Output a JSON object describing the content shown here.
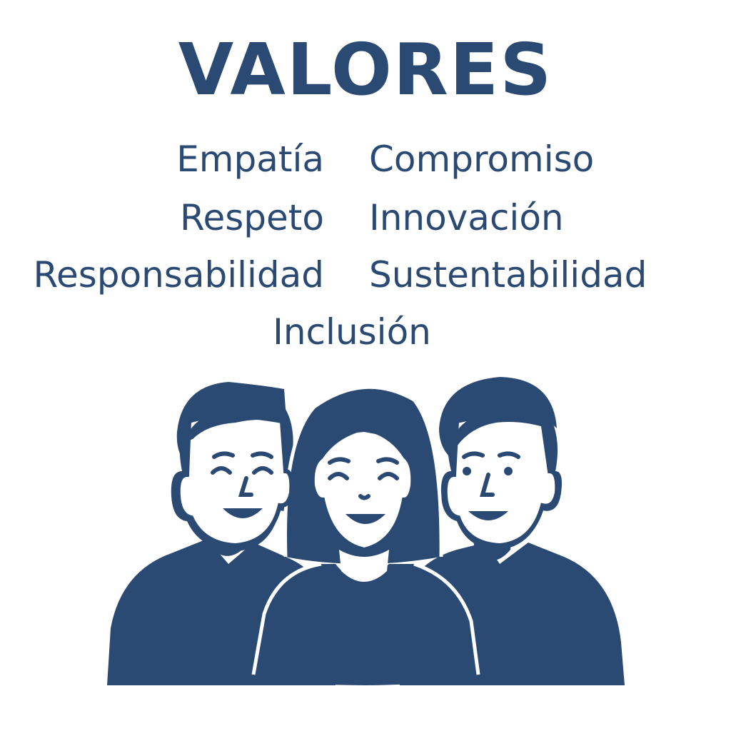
{
  "title": "VALORES",
  "values": {
    "left": [
      "Empatía",
      "Respeto",
      "Responsabilidad"
    ],
    "right": [
      "Compromiso",
      "Innovación",
      "Sustentabilidad"
    ],
    "center": "Inclusión"
  },
  "illustration": {
    "icon": "group-of-people-icon",
    "color": "#2b4a73",
    "people": [
      "man-left",
      "woman-center",
      "man-right"
    ]
  }
}
